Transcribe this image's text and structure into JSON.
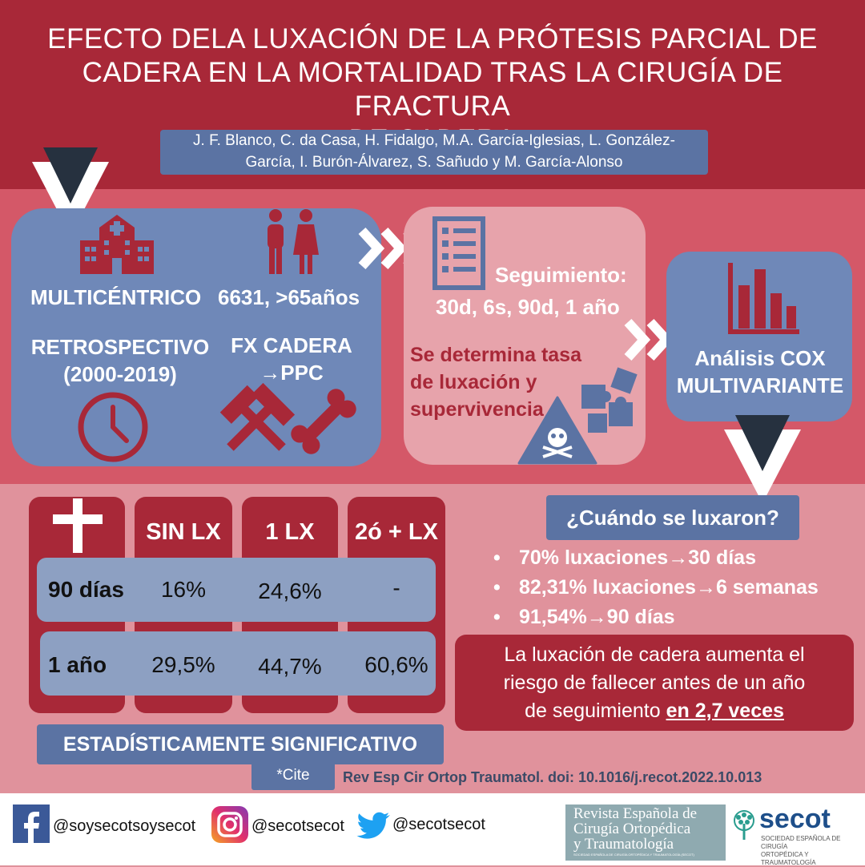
{
  "title": {
    "line1": "EFECTO DELA LUXACIÓN DE LA PRÓTESIS PARCIAL DE",
    "line2": "CADERA EN LA MORTALIDAD TRAS LA CIRUGÍA DE FRACTURA",
    "line3": "DE CADERA"
  },
  "authors": {
    "line1": "J. F. Blanco, C. da Casa, H. Fidalgo, M.A. García-Iglesias, L. González-",
    "line2": "García, I. Burón-Álvarez, S. Sañudo y M. García-Alonso"
  },
  "design": {
    "multicenter": "MULTICÉNTRICO",
    "sample": "6631, >65años",
    "retro_label": "RETROSPECTIVO",
    "retro_period": "(2000-2019)",
    "fx_line1": "FX CADERA",
    "fx_line2": "→PPC"
  },
  "followup": {
    "label": "Seguimiento:",
    "times": "30d, 6s, 90d, 1 año",
    "determine_line1": "Se determina tasa",
    "determine_line2": "de luxación y",
    "determine_line3": "supervivencia"
  },
  "analysis": {
    "line1": "Análisis COX",
    "line2": "MULTIVARIANTE"
  },
  "table": {
    "columns": [
      "SIN LX",
      "1 LX",
      "2ó + LX"
    ],
    "rows": [
      {
        "label": "90 días",
        "values": [
          "16%",
          "24,6%",
          "-"
        ]
      },
      {
        "label": "1 año",
        "values": [
          "29,5%",
          "44,7%",
          "60,6%"
        ]
      }
    ],
    "significance": "ESTADÍSTICAMENTE SIGNIFICATIVO"
  },
  "when": {
    "question": "¿Cuándo se luxaron?",
    "bullets": [
      "70% luxaciones→30 días",
      "82,31% luxaciones→6 semanas",
      "91,54%→90 días"
    ]
  },
  "conclusion": {
    "line1": "La luxación de cadera aumenta el",
    "line2": "riesgo de fallecer antes de un año",
    "line3_prefix": "de seguimiento ",
    "line3_emph": "en 2,7 veces"
  },
  "cite": {
    "button": "*Cite",
    "reference": "Rev Esp Cir Ortop Traumatol. doi: 10.1016/j.recot.2022.10.013"
  },
  "footer": {
    "facebook": "@soysecotsoysecot",
    "instagram": "@secotsecot",
    "twitter": "@secotsecot",
    "journal_line1": "Revista Española de",
    "journal_line2": "Cirugía Ortopédica",
    "journal_line3": "y Traumatología",
    "journal_small": "SOCIEDAD ESPAÑOLA DE CIRUGÍA ORTOPÉDICA Y TRAUMATOLOGÍA (SECOT)",
    "secot_logo": "secot",
    "secot_line1": "SOCIEDAD ESPAÑOLA DE CIRUGÍA",
    "secot_line2": "ORTOPÉDICA Y TRAUMATOLOGÍA"
  },
  "colors": {
    "dark_red": "#a82838",
    "mid_red": "#d45868",
    "pink": "#e0929c",
    "blue": "#6f88b8",
    "navy": "#5b73a3"
  }
}
